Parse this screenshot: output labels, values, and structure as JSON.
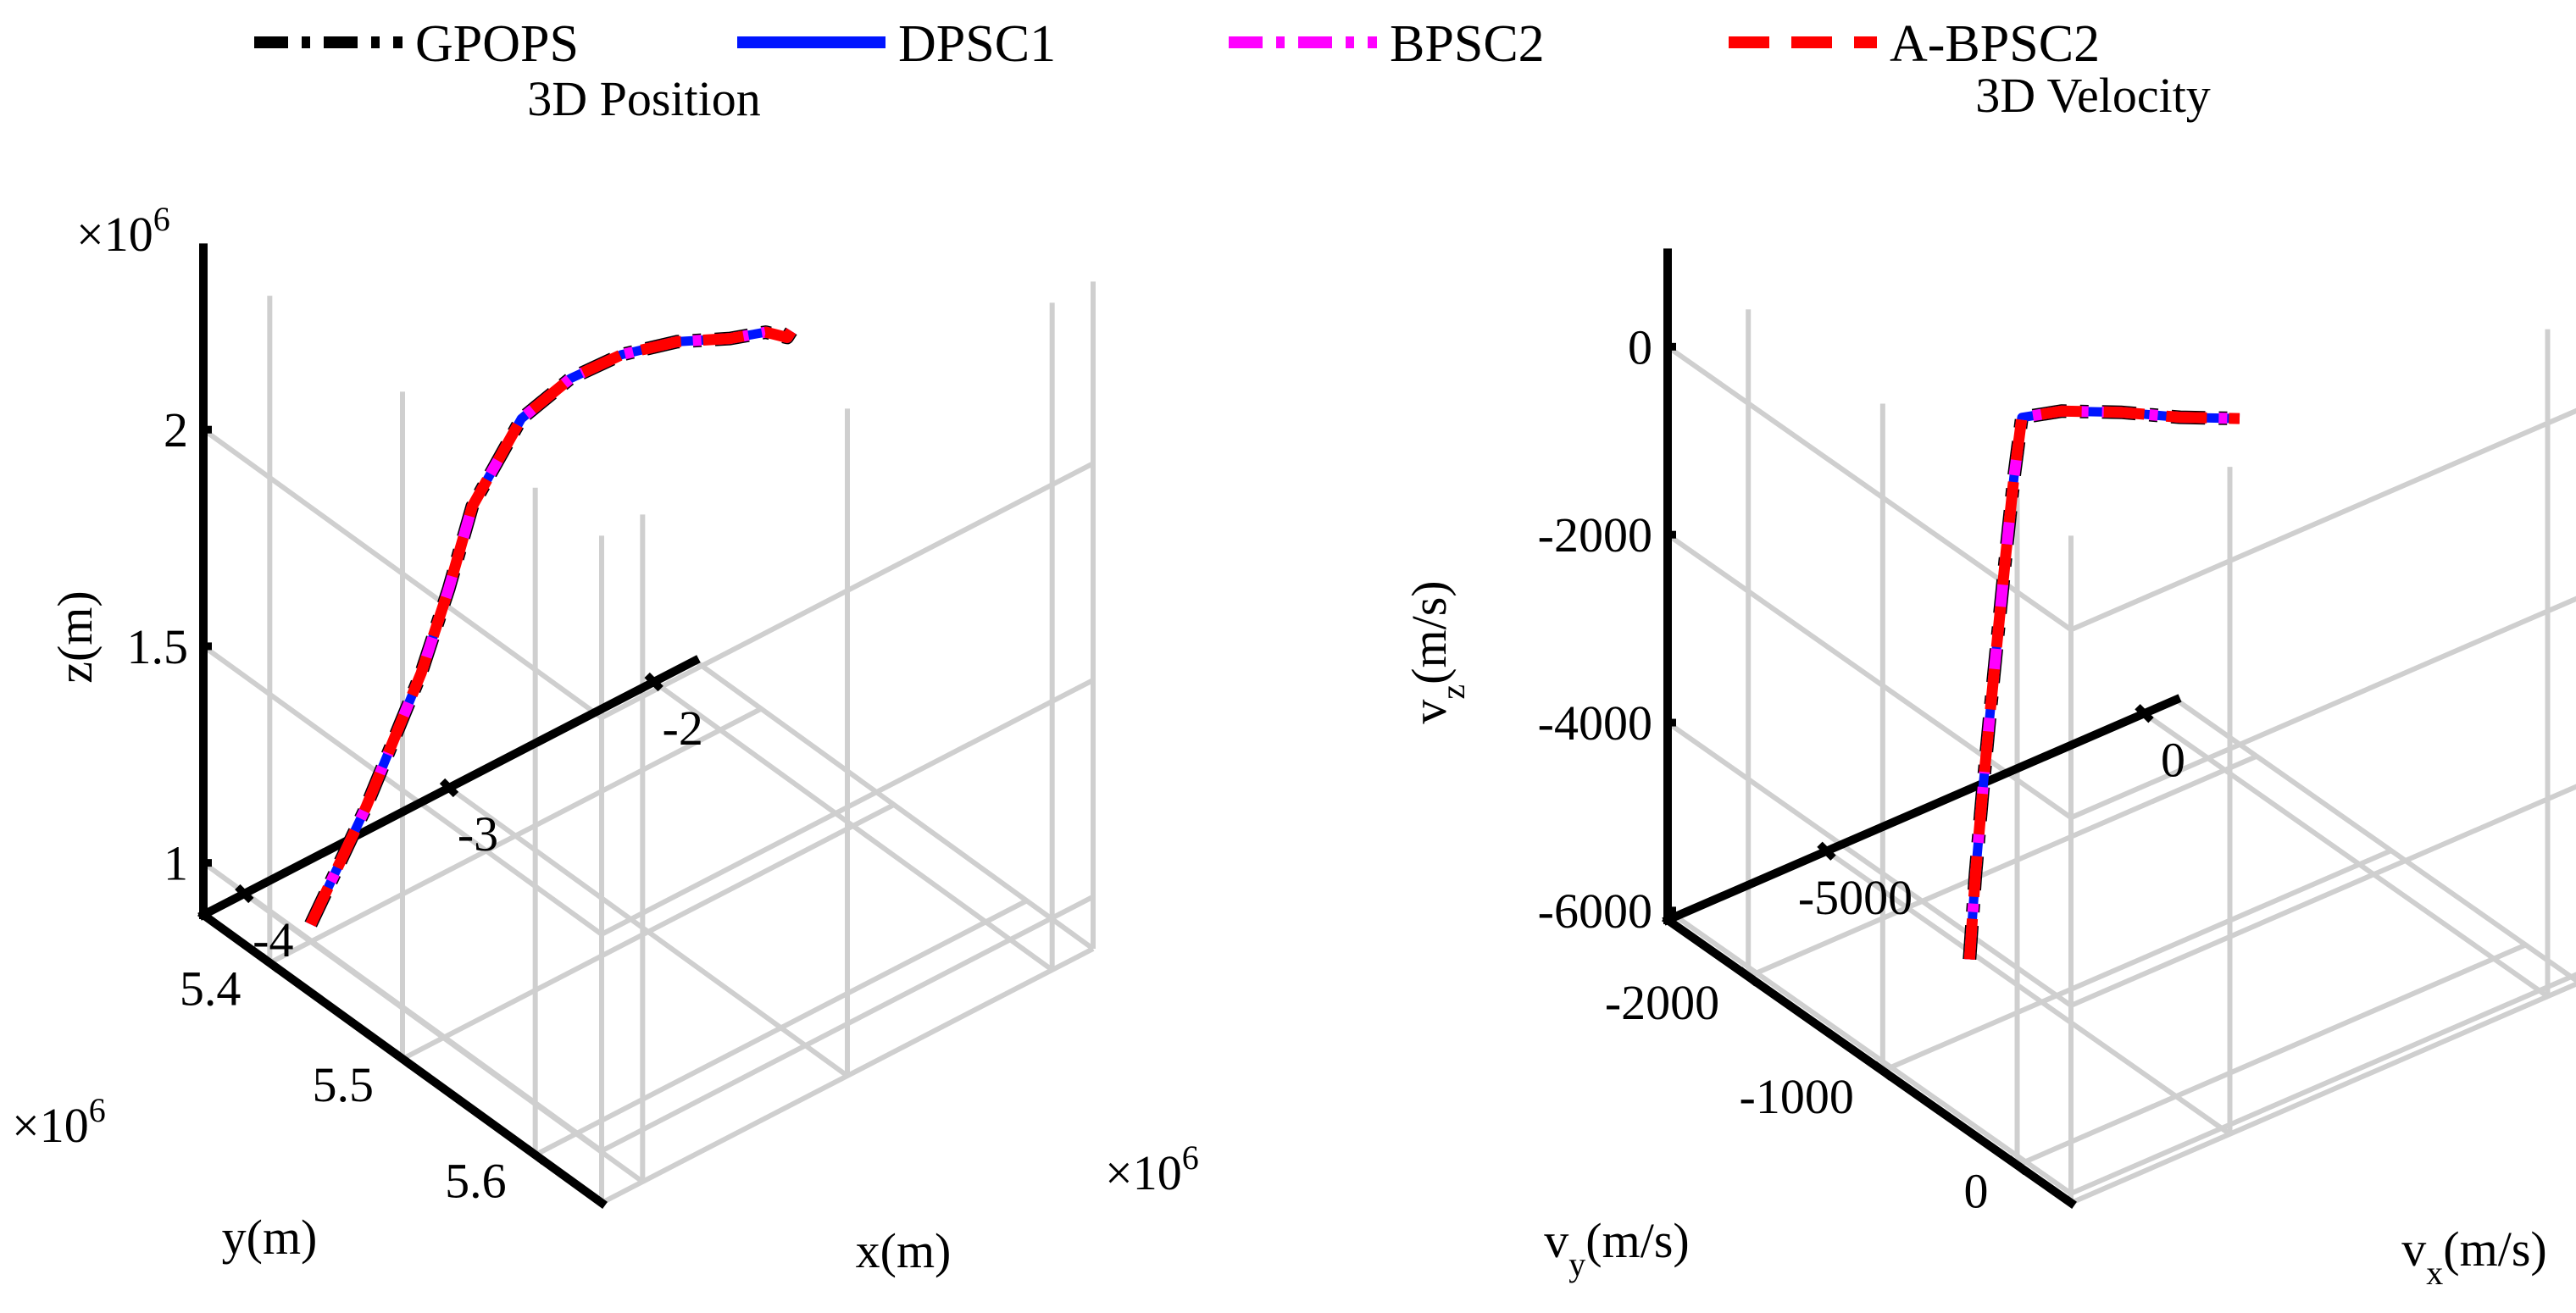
{
  "chart_data": [
    {
      "type": "line",
      "subtype": "3d",
      "title": "3D Position",
      "xlabel": "x(m)",
      "ylabel": "y(m)",
      "zlabel": "z(m)",
      "x_ticks": [
        "-4",
        "-3",
        "-2"
      ],
      "y_ticks": [
        "5.4",
        "5.5",
        "5.6"
      ],
      "z_ticks": [
        "1",
        "1.5",
        "2"
      ],
      "x_exponent": "×10",
      "x_exponent_power": "6",
      "y_exponent": "×10",
      "y_exponent_power": "6",
      "z_exponent": "×10",
      "z_exponent_power": "6",
      "x_unit_scale": 1000000,
      "y_unit_scale": 1000000,
      "z_unit_scale": 1000000,
      "ranges": {
        "x": [
          -4.2,
          -1.8
        ],
        "y": [
          5.35,
          5.65
        ],
        "z": [
          0.88,
          2.42
        ]
      },
      "series": [
        {
          "name": "GPOPS",
          "style": "dash-dot",
          "color": "#000000",
          "x": [
            -4.0,
            -3.93,
            -3.86,
            -3.79,
            -3.72,
            -3.65,
            -3.6,
            -3.49,
            -3.38,
            -3.26,
            -3.12,
            -2.99,
            -2.88,
            -2.84,
            -2.82
          ],
          "y": [
            5.4,
            5.41,
            5.42,
            5.43,
            5.44,
            5.45,
            5.46,
            5.48,
            5.5,
            5.52,
            5.54,
            5.56,
            5.57,
            5.58,
            5.58
          ],
          "z": [
            0.92,
            1.06,
            1.2,
            1.36,
            1.52,
            1.72,
            1.92,
            2.14,
            2.25,
            2.32,
            2.36,
            2.38,
            2.39,
            2.39,
            2.4
          ]
        },
        {
          "name": "DPSC1",
          "style": "solid",
          "color": "#0015ff",
          "x": [
            -4.0,
            -3.93,
            -3.86,
            -3.79,
            -3.72,
            -3.65,
            -3.6,
            -3.49,
            -3.38,
            -3.26,
            -3.12,
            -2.99,
            -2.88,
            -2.84,
            -2.82
          ],
          "y": [
            5.4,
            5.41,
            5.42,
            5.43,
            5.44,
            5.45,
            5.46,
            5.48,
            5.5,
            5.52,
            5.54,
            5.56,
            5.57,
            5.58,
            5.58
          ],
          "z": [
            0.92,
            1.06,
            1.2,
            1.36,
            1.52,
            1.72,
            1.92,
            2.14,
            2.25,
            2.32,
            2.36,
            2.38,
            2.39,
            2.39,
            2.4
          ]
        },
        {
          "name": "BPSC2",
          "style": "dash-dot",
          "color": "#ff00ff",
          "x": [
            -4.0,
            -3.93,
            -3.86,
            -3.79,
            -3.72,
            -3.65,
            -3.6,
            -3.49,
            -3.38,
            -3.26,
            -3.12,
            -2.99,
            -2.88,
            -2.84,
            -2.82
          ],
          "y": [
            5.4,
            5.41,
            5.42,
            5.43,
            5.44,
            5.45,
            5.46,
            5.48,
            5.5,
            5.52,
            5.54,
            5.56,
            5.57,
            5.58,
            5.58
          ],
          "z": [
            0.92,
            1.06,
            1.2,
            1.36,
            1.52,
            1.72,
            1.92,
            2.14,
            2.25,
            2.32,
            2.36,
            2.38,
            2.39,
            2.39,
            2.4
          ]
        },
        {
          "name": "A-BPSC2",
          "style": "dashed",
          "color": "#ff0000",
          "x": [
            -4.0,
            -3.93,
            -3.86,
            -3.79,
            -3.72,
            -3.65,
            -3.6,
            -3.49,
            -3.38,
            -3.26,
            -3.12,
            -2.99,
            -2.88,
            -2.84,
            -2.82
          ],
          "y": [
            5.4,
            5.41,
            5.42,
            5.43,
            5.44,
            5.45,
            5.46,
            5.48,
            5.5,
            5.52,
            5.54,
            5.56,
            5.57,
            5.58,
            5.58
          ],
          "z": [
            0.92,
            1.06,
            1.2,
            1.36,
            1.52,
            1.72,
            1.92,
            2.14,
            2.25,
            2.32,
            2.36,
            2.38,
            2.39,
            2.39,
            2.4
          ]
        }
      ]
    },
    {
      "type": "line",
      "subtype": "3d",
      "title": "3D Velocity",
      "xlabel": "v",
      "xlabel_sub": "x",
      "xlabel_unit": "(m/s)",
      "ylabel": "v",
      "ylabel_sub": "y",
      "ylabel_unit": "(m/s)",
      "zlabel": "v",
      "zlabel_sub": "z",
      "zlabel_unit": "(m/s)",
      "x_ticks": [
        "-5000",
        "0"
      ],
      "y_ticks": [
        "-2000",
        "-1000",
        "0"
      ],
      "z_ticks": [
        "-6000",
        "-4000",
        "-2000",
        "0"
      ],
      "ranges": {
        "x": [
          -7500,
          500
        ],
        "y": [
          -2600,
          400
        ],
        "z": [
          -6100,
          1000
        ]
      },
      "series": [
        {
          "name": "GPOPS",
          "style": "dash-dot",
          "color": "#000000",
          "x": [
            -5500,
            -5450,
            -5400,
            -5340,
            -5280,
            -5220,
            -5160,
            -5100,
            -4900,
            -4600,
            -4300,
            -4000
          ],
          "y": [
            -1300,
            -1280,
            -1250,
            -1220,
            -1190,
            -1160,
            -1130,
            -1100,
            -900,
            -600,
            -300,
            0
          ],
          "z": [
            -5800,
            -4900,
            -4000,
            -3100,
            -2250,
            -1400,
            -600,
            50,
            260,
            460,
            620,
            820
          ]
        },
        {
          "name": "DPSC1",
          "style": "solid",
          "color": "#0015ff",
          "x": [
            -5500,
            -5450,
            -5400,
            -5340,
            -5280,
            -5220,
            -5160,
            -5100,
            -4900,
            -4600,
            -4300,
            -4000
          ],
          "y": [
            -1300,
            -1280,
            -1250,
            -1220,
            -1190,
            -1160,
            -1130,
            -1100,
            -900,
            -600,
            -300,
            0
          ],
          "z": [
            -5800,
            -4900,
            -4000,
            -3100,
            -2250,
            -1400,
            -600,
            50,
            260,
            460,
            620,
            820
          ]
        },
        {
          "name": "BPSC2",
          "style": "dash-dot",
          "color": "#ff00ff",
          "x": [
            -5500,
            -5450,
            -5400,
            -5340,
            -5280,
            -5220,
            -5160,
            -5100,
            -4900,
            -4600,
            -4300,
            -4000
          ],
          "y": [
            -1300,
            -1280,
            -1250,
            -1220,
            -1190,
            -1160,
            -1130,
            -1100,
            -900,
            -600,
            -300,
            0
          ],
          "z": [
            -5800,
            -4900,
            -4000,
            -3100,
            -2250,
            -1400,
            -600,
            50,
            260,
            460,
            620,
            820
          ]
        },
        {
          "name": "A-BPSC2",
          "style": "dashed",
          "color": "#ff0000",
          "x": [
            -5500,
            -5450,
            -5400,
            -5340,
            -5280,
            -5220,
            -5160,
            -5100,
            -4900,
            -4600,
            -4300,
            -4000
          ],
          "y": [
            -1300,
            -1280,
            -1250,
            -1220,
            -1190,
            -1160,
            -1130,
            -1100,
            -900,
            -600,
            -300,
            0
          ],
          "z": [
            -5800,
            -4900,
            -4000,
            -3100,
            -2250,
            -1400,
            -600,
            50,
            260,
            460,
            620,
            820
          ]
        }
      ]
    }
  ],
  "legend": {
    "placement": "top",
    "entries": [
      {
        "label": "GPOPS",
        "color": "#000000",
        "style": "dash-dot"
      },
      {
        "label": "DPSC1",
        "color": "#0015ff",
        "style": "solid"
      },
      {
        "label": "BPSC2",
        "color": "#ff00ff",
        "style": "dash-dot"
      },
      {
        "label": "A-BPSC2",
        "color": "#ff0000",
        "style": "dashed"
      }
    ]
  }
}
